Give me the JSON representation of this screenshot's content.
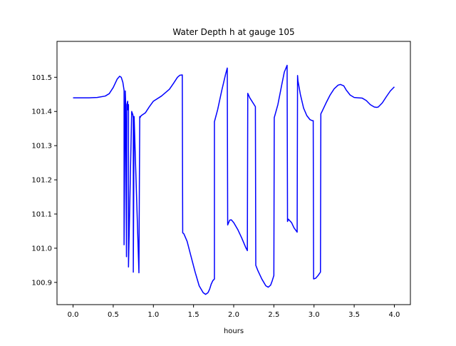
{
  "chart_data": {
    "type": "line",
    "title": "Water Depth h at gauge 105",
    "xlabel": "hours",
    "ylabel": "",
    "xlim": [
      -0.2,
      4.2
    ],
    "ylim": [
      100.835,
      101.605
    ],
    "xticks": [
      0.0,
      0.5,
      1.0,
      1.5,
      2.0,
      2.5,
      3.0,
      3.5,
      4.0
    ],
    "xtick_labels": [
      "0.0",
      "0.5",
      "1.0",
      "1.5",
      "2.0",
      "2.5",
      "3.0",
      "3.5",
      "4.0"
    ],
    "yticks": [
      100.9,
      101.0,
      101.1,
      101.2,
      101.3,
      101.4,
      101.5
    ],
    "ytick_labels": [
      "100.9",
      "101.0",
      "101.1",
      "101.2",
      "101.3",
      "101.4",
      "101.5"
    ],
    "grid": false,
    "colors": {
      "line": "#0000ff",
      "axes": "#000000",
      "background": "#ffffff"
    },
    "series": [
      {
        "x": [
          0.0,
          0.1,
          0.2,
          0.3,
          0.4,
          0.45,
          0.5,
          0.55,
          0.58,
          0.6,
          0.62,
          0.635,
          0.635,
          0.65,
          0.655,
          0.665,
          0.67,
          0.68,
          0.68,
          0.69,
          0.69,
          0.73,
          0.745,
          0.75,
          0.75,
          0.76,
          0.82,
          0.83,
          0.835,
          0.84,
          0.85,
          0.9,
          0.95,
          1.0,
          1.1,
          1.2,
          1.25,
          1.3,
          1.33,
          1.36,
          1.365,
          1.38,
          1.42,
          1.47,
          1.52,
          1.57,
          1.62,
          1.65,
          1.68,
          1.7,
          1.72,
          1.74,
          1.76,
          1.76,
          1.8,
          1.85,
          1.9,
          1.92,
          1.925,
          1.95,
          1.97,
          2.0,
          2.05,
          2.1,
          2.15,
          2.17,
          2.175,
          2.2,
          2.27,
          2.275,
          2.3,
          2.35,
          2.4,
          2.43,
          2.46,
          2.48,
          2.5,
          2.505,
          2.55,
          2.6,
          2.63,
          2.665,
          2.67,
          2.68,
          2.72,
          2.75,
          2.79,
          2.795,
          2.8,
          2.83,
          2.87,
          2.91,
          2.95,
          2.98,
          2.99,
          2.995,
          3.02,
          3.05,
          3.08,
          3.085,
          3.1,
          3.15,
          3.2,
          3.25,
          3.3,
          3.33,
          3.37,
          3.4,
          3.45,
          3.5,
          3.55,
          3.6,
          3.65,
          3.7,
          3.75,
          3.78,
          3.8,
          3.85,
          3.9,
          3.95,
          4.0
        ],
        "y": [
          101.44,
          101.44,
          101.44,
          101.441,
          101.445,
          101.452,
          101.47,
          101.495,
          101.503,
          101.5,
          101.485,
          101.462,
          101.01,
          101.46,
          101.42,
          100.975,
          101.42,
          101.43,
          101.405,
          101.42,
          100.945,
          101.4,
          101.39,
          101.38,
          100.93,
          101.385,
          100.928,
          101.385,
          101.382,
          101.385,
          101.388,
          101.396,
          101.414,
          101.43,
          101.445,
          101.465,
          101.482,
          101.5,
          101.506,
          101.507,
          101.045,
          101.042,
          101.02,
          100.975,
          100.93,
          100.89,
          100.87,
          100.865,
          100.87,
          100.88,
          100.895,
          100.905,
          100.91,
          101.37,
          101.405,
          101.46,
          101.51,
          101.527,
          101.068,
          101.082,
          101.083,
          101.075,
          101.055,
          101.03,
          101.002,
          100.993,
          101.453,
          101.44,
          101.414,
          100.95,
          100.935,
          100.91,
          100.89,
          100.886,
          100.892,
          100.905,
          100.92,
          101.382,
          101.42,
          101.48,
          101.515,
          101.535,
          101.078,
          101.085,
          101.075,
          101.06,
          101.047,
          101.505,
          101.49,
          101.45,
          101.41,
          101.388,
          101.376,
          101.373,
          101.373,
          100.91,
          100.912,
          100.92,
          100.93,
          101.393,
          101.4,
          101.425,
          101.448,
          101.466,
          101.477,
          101.479,
          101.475,
          101.463,
          101.448,
          101.441,
          101.44,
          101.439,
          101.432,
          101.42,
          101.413,
          101.412,
          101.413,
          101.425,
          101.443,
          101.46,
          101.472
        ]
      }
    ]
  }
}
